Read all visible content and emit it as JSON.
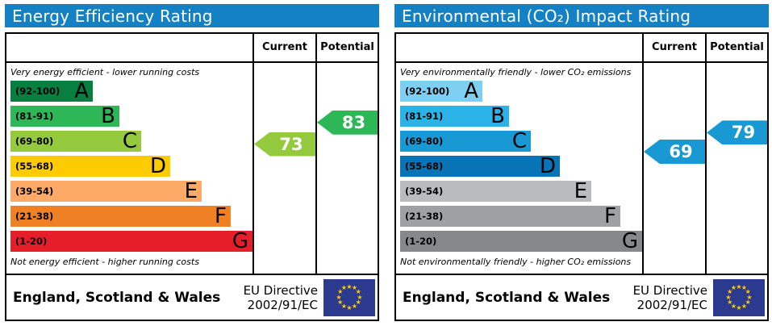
{
  "theme": {
    "header_bg": "#1581c5",
    "border": "#000000",
    "flag_blue": "#2b3a8f",
    "star_yellow": "#ffcc00",
    "arrow_text": "#ffffff"
  },
  "charts": [
    {
      "title": "Energy Efficiency Rating",
      "columns": {
        "current": "Current",
        "potential": "Potential"
      },
      "caption_top": "Very energy efficient - lower running costs",
      "caption_bottom": "Not energy efficient - higher running costs",
      "bands": [
        {
          "letter": "A",
          "range": "(92-100)",
          "low": 92,
          "high": 100,
          "color": "#067f41",
          "width_pct": 34
        },
        {
          "letter": "B",
          "range": "(81-91)",
          "low": 81,
          "high": 91,
          "color": "#2db757",
          "width_pct": 45
        },
        {
          "letter": "C",
          "range": "(69-80)",
          "low": 69,
          "high": 80,
          "color": "#95ca3e",
          "width_pct": 54
        },
        {
          "letter": "D",
          "range": "(55-68)",
          "low": 55,
          "high": 68,
          "color": "#fecb00",
          "width_pct": 66
        },
        {
          "letter": "E",
          "range": "(39-54)",
          "low": 39,
          "high": 54,
          "color": "#fcaa65",
          "width_pct": 79
        },
        {
          "letter": "F",
          "range": "(21-38)",
          "low": 21,
          "high": 38,
          "color": "#ef8023",
          "width_pct": 91
        },
        {
          "letter": "G",
          "range": "(1-20)",
          "low": 1,
          "high": 20,
          "color": "#e61e2a",
          "width_pct": 100
        }
      ],
      "current": {
        "value": 73,
        "color": "#95ca3e"
      },
      "potential": {
        "value": 83,
        "color": "#2db757"
      },
      "footer": {
        "region": "England, Scotland & Wales",
        "directive_line1": "EU Directive",
        "directive_line2": "2002/91/EC"
      }
    },
    {
      "title": "Environmental (CO₂) Impact Rating",
      "columns": {
        "current": "Current",
        "potential": "Potential"
      },
      "caption_top": "Very environmentally friendly - lower CO₂ emissions",
      "caption_bottom": "Not environmentally friendly - higher CO₂ emissions",
      "bands": [
        {
          "letter": "A",
          "range": "(92-100)",
          "low": 92,
          "high": 100,
          "color": "#7ed0f3",
          "width_pct": 34
        },
        {
          "letter": "B",
          "range": "(81-91)",
          "low": 81,
          "high": 91,
          "color": "#2bb2e7",
          "width_pct": 45
        },
        {
          "letter": "C",
          "range": "(69-80)",
          "low": 69,
          "high": 80,
          "color": "#1899d4",
          "width_pct": 54
        },
        {
          "letter": "D",
          "range": "(55-68)",
          "low": 55,
          "high": 68,
          "color": "#0873b5",
          "width_pct": 66
        },
        {
          "letter": "E",
          "range": "(39-54)",
          "low": 39,
          "high": 54,
          "color": "#b9bbbd",
          "width_pct": 79
        },
        {
          "letter": "F",
          "range": "(21-38)",
          "low": 21,
          "high": 38,
          "color": "#9ea0a3",
          "width_pct": 91
        },
        {
          "letter": "G",
          "range": "(1-20)",
          "low": 1,
          "high": 20,
          "color": "#87888b",
          "width_pct": 100
        }
      ],
      "current": {
        "value": 69,
        "color": "#1899d4"
      },
      "potential": {
        "value": 79,
        "color": "#1899d4"
      },
      "footer": {
        "region": "England, Scotland & Wales",
        "directive_line1": "EU Directive",
        "directive_line2": "2002/91/EC"
      }
    }
  ],
  "chart_data": [
    {
      "type": "bar",
      "title": "Energy Efficiency Rating",
      "categories": [
        "A (92-100)",
        "B (81-91)",
        "C (69-80)",
        "D (55-68)",
        "E (39-54)",
        "F (21-38)",
        "G (1-20)"
      ],
      "series": [
        {
          "name": "Current",
          "values": [
            73
          ],
          "band": "C"
        },
        {
          "name": "Potential",
          "values": [
            83
          ],
          "band": "B"
        }
      ],
      "scale_min": 1,
      "scale_max": 100,
      "legend_position": "none",
      "grid": false,
      "annotations": [
        "Very energy efficient - lower running costs",
        "Not energy efficient - higher running costs",
        "England, Scotland & Wales",
        "EU Directive 2002/91/EC"
      ]
    },
    {
      "type": "bar",
      "title": "Environmental (CO₂) Impact Rating",
      "categories": [
        "A (92-100)",
        "B (81-91)",
        "C (69-80)",
        "D (55-68)",
        "E (39-54)",
        "F (21-38)",
        "G (1-20)"
      ],
      "series": [
        {
          "name": "Current",
          "values": [
            69
          ],
          "band": "C"
        },
        {
          "name": "Potential",
          "values": [
            79
          ],
          "band": "C"
        }
      ],
      "scale_min": 1,
      "scale_max": 100,
      "legend_position": "none",
      "grid": false,
      "annotations": [
        "Very environmentally friendly - lower CO₂ emissions",
        "Not environmentally friendly - higher CO₂ emissions",
        "England, Scotland & Wales",
        "EU Directive 2002/91/EC"
      ]
    }
  ]
}
